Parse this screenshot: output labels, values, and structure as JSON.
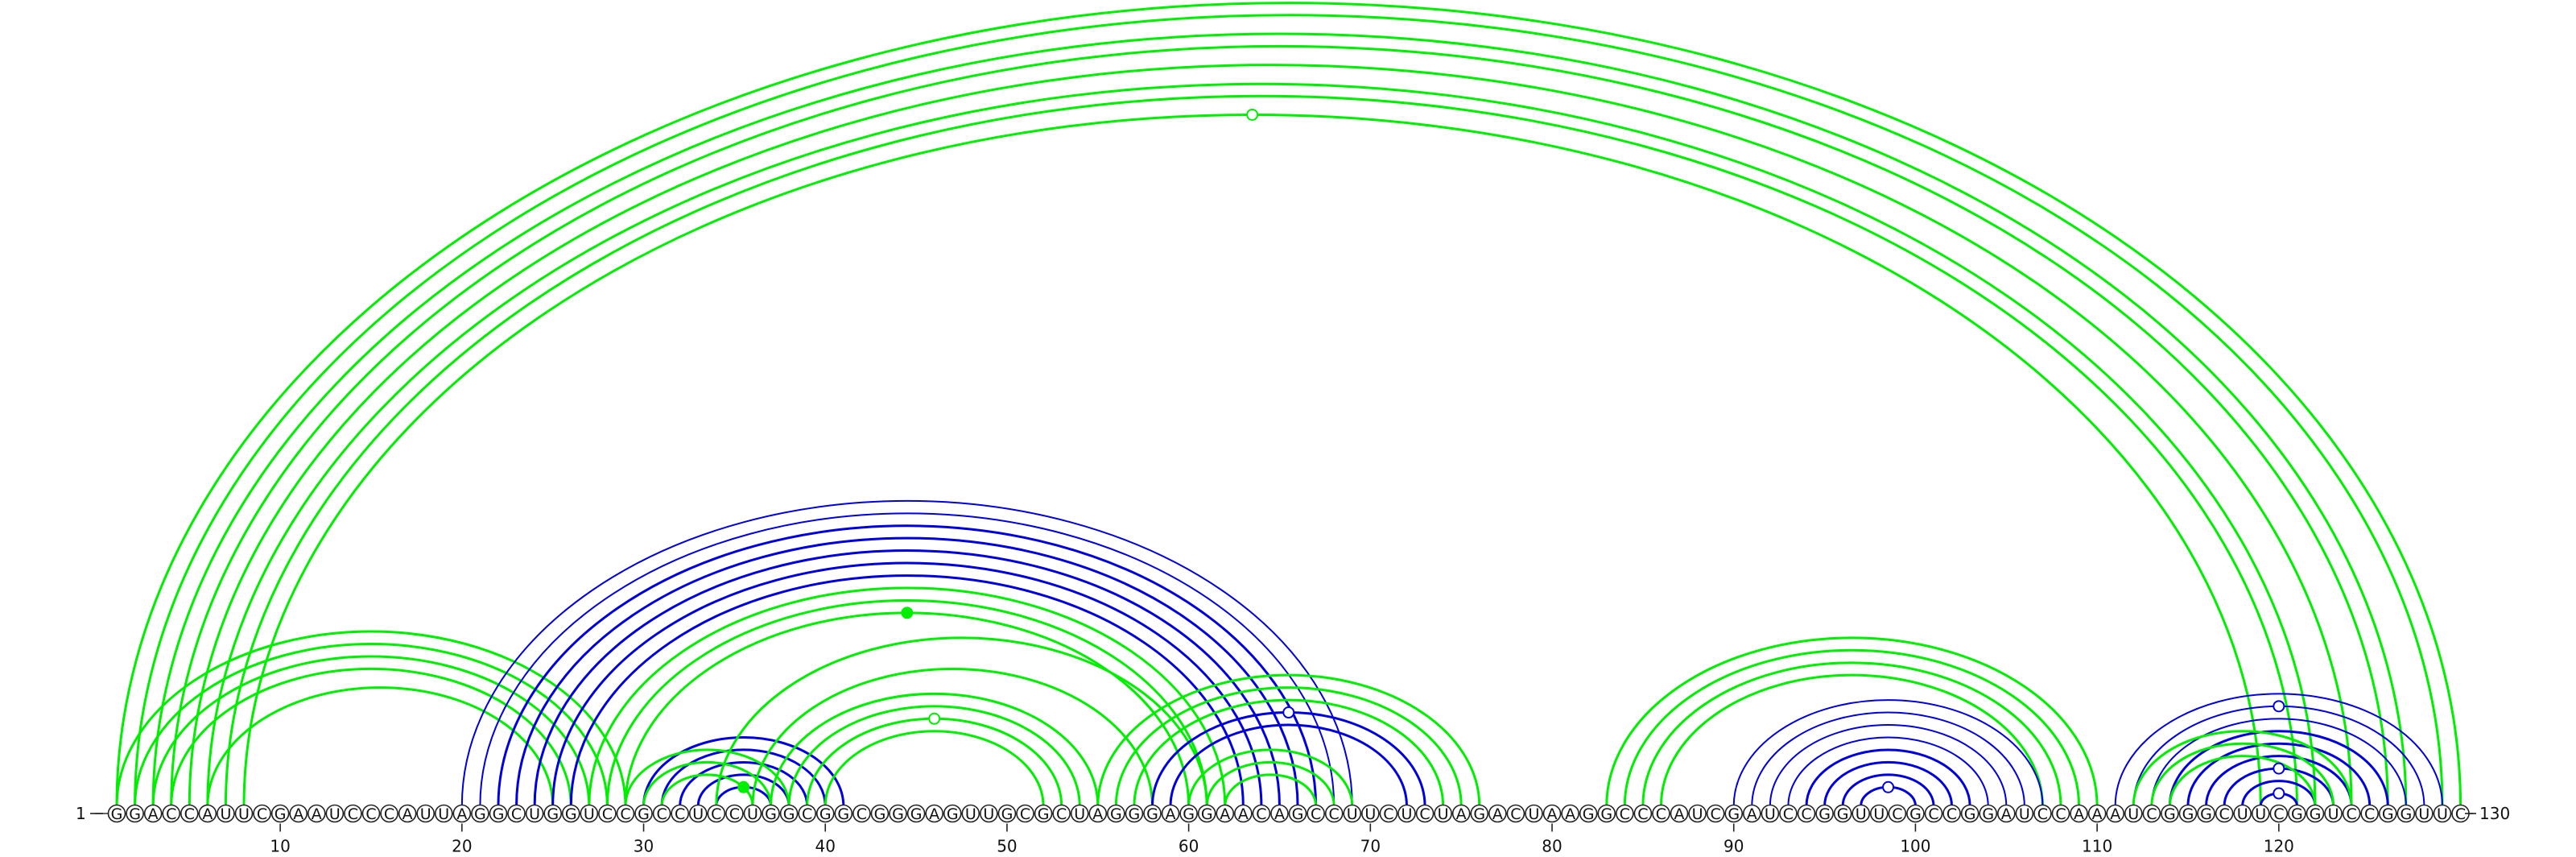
{
  "diagram": {
    "type": "rna-arc-diagram",
    "sequence": "GGACCAUUCGAAUCCCAUUAGGCUGGUCCGCCUCCUGGCGGCGGGAGUUGCGCUAGGGAGGAACAGCCUUCUCUAGACUAAGGCCCAUCGAUCCGGUUCGCCGGAUCCAAAUCGGGCUUCGGUCCGGUUC",
    "start_label": "1",
    "end_label": "130",
    "ticks": [
      "10",
      "20",
      "30",
      "40",
      "50",
      "60",
      "70",
      "80",
      "90",
      "100",
      "110",
      "120"
    ],
    "colors": {
      "green": "#00ee00",
      "blue": "#0000dd",
      "backbone": "#333333"
    },
    "arcs": [
      {
        "i": 1,
        "j": 130,
        "color": "green",
        "w": 3
      },
      {
        "i": 2,
        "j": 129,
        "color": "green",
        "w": 3
      },
      {
        "i": 3,
        "j": 127,
        "color": "green",
        "w": 3
      },
      {
        "i": 4,
        "j": 126,
        "color": "green",
        "w": 3
      },
      {
        "i": 5,
        "j": 124,
        "color": "green",
        "w": 3
      },
      {
        "i": 6,
        "j": 122,
        "color": "green",
        "w": 3
      },
      {
        "i": 7,
        "j": 121,
        "color": "green",
        "w": 3
      },
      {
        "i": 8,
        "j": 119,
        "color": "green",
        "w": 3
      },
      {
        "i": 1,
        "j": 29,
        "color": "green",
        "w": 3
      },
      {
        "i": 2,
        "j": 28,
        "color": "green",
        "w": 3
      },
      {
        "i": 3,
        "j": 27,
        "color": "green",
        "w": 3
      },
      {
        "i": 4,
        "j": 26,
        "color": "green",
        "w": 3
      },
      {
        "i": 6,
        "j": 25,
        "color": "green",
        "w": 3
      },
      {
        "i": 20,
        "j": 69,
        "color": "blue",
        "w": 2
      },
      {
        "i": 21,
        "j": 68,
        "color": "blue",
        "w": 2
      },
      {
        "i": 22,
        "j": 67,
        "color": "blue",
        "w": 3
      },
      {
        "i": 23,
        "j": 66,
        "color": "blue",
        "w": 3
      },
      {
        "i": 24,
        "j": 65,
        "color": "blue",
        "w": 3
      },
      {
        "i": 25,
        "j": 64,
        "color": "blue",
        "w": 3
      },
      {
        "i": 26,
        "j": 63,
        "color": "blue",
        "w": 3
      },
      {
        "i": 27,
        "j": 62,
        "color": "green",
        "w": 3
      },
      {
        "i": 28,
        "j": 61,
        "color": "green",
        "w": 3
      },
      {
        "i": 29,
        "j": 60,
        "color": "green",
        "w": 3
      },
      {
        "i": 30,
        "j": 41,
        "color": "blue",
        "w": 3
      },
      {
        "i": 31,
        "j": 40,
        "color": "blue",
        "w": 3
      },
      {
        "i": 32,
        "j": 39,
        "color": "blue",
        "w": 3
      },
      {
        "i": 33,
        "j": 38,
        "color": "blue",
        "w": 3
      },
      {
        "i": 34,
        "j": 37,
        "color": "blue",
        "w": 3
      },
      {
        "i": 29,
        "j": 38,
        "color": "green",
        "w": 3
      },
      {
        "i": 30,
        "j": 37,
        "color": "green",
        "w": 3
      },
      {
        "i": 31,
        "j": 36,
        "color": "green",
        "w": 3
      },
      {
        "i": 34,
        "j": 61,
        "color": "green",
        "w": 3
      },
      {
        "i": 36,
        "j": 58,
        "color": "green",
        "w": 3
      },
      {
        "i": 37,
        "j": 55,
        "color": "green",
        "w": 3
      },
      {
        "i": 38,
        "j": 54,
        "color": "green",
        "w": 3
      },
      {
        "i": 39,
        "j": 53,
        "color": "green",
        "w": 3
      },
      {
        "i": 40,
        "j": 52,
        "color": "green",
        "w": 3
      },
      {
        "i": 55,
        "j": 76,
        "color": "green",
        "w": 3
      },
      {
        "i": 56,
        "j": 75,
        "color": "green",
        "w": 3
      },
      {
        "i": 57,
        "j": 74,
        "color": "green",
        "w": 3
      },
      {
        "i": 58,
        "j": 73,
        "color": "blue",
        "w": 3
      },
      {
        "i": 59,
        "j": 72,
        "color": "blue",
        "w": 3
      },
      {
        "i": 60,
        "j": 69,
        "color": "green",
        "w": 3
      },
      {
        "i": 61,
        "j": 68,
        "color": "green",
        "w": 3
      },
      {
        "i": 62,
        "j": 67,
        "color": "green",
        "w": 3
      },
      {
        "i": 83,
        "j": 110,
        "color": "green",
        "w": 3
      },
      {
        "i": 84,
        "j": 109,
        "color": "green",
        "w": 3
      },
      {
        "i": 85,
        "j": 108,
        "color": "green",
        "w": 3
      },
      {
        "i": 86,
        "j": 107,
        "color": "green",
        "w": 3
      },
      {
        "i": 90,
        "j": 107,
        "color": "blue",
        "w": 2
      },
      {
        "i": 91,
        "j": 106,
        "color": "blue",
        "w": 2
      },
      {
        "i": 92,
        "j": 105,
        "color": "blue",
        "w": 2
      },
      {
        "i": 93,
        "j": 104,
        "color": "blue",
        "w": 2
      },
      {
        "i": 94,
        "j": 103,
        "color": "blue",
        "w": 3
      },
      {
        "i": 95,
        "j": 102,
        "color": "blue",
        "w": 3
      },
      {
        "i": 96,
        "j": 101,
        "color": "blue",
        "w": 3
      },
      {
        "i": 97,
        "j": 100,
        "color": "blue",
        "w": 3
      },
      {
        "i": 111,
        "j": 129,
        "color": "blue",
        "w": 2
      },
      {
        "i": 112,
        "j": 128,
        "color": "blue",
        "w": 2
      },
      {
        "i": 113,
        "j": 127,
        "color": "blue",
        "w": 2
      },
      {
        "i": 114,
        "j": 126,
        "color": "blue",
        "w": 3
      },
      {
        "i": 115,
        "j": 125,
        "color": "blue",
        "w": 3
      },
      {
        "i": 116,
        "j": 124,
        "color": "blue",
        "w": 3
      },
      {
        "i": 117,
        "j": 123,
        "color": "blue",
        "w": 3
      },
      {
        "i": 118,
        "j": 122,
        "color": "blue",
        "w": 3
      },
      {
        "i": 119,
        "j": 121,
        "color": "blue",
        "w": 3
      },
      {
        "i": 112,
        "j": 124,
        "color": "green",
        "w": 3
      },
      {
        "i": 113,
        "j": 123,
        "color": "green",
        "w": 3
      },
      {
        "i": 114,
        "j": 122,
        "color": "green",
        "w": 3
      }
    ],
    "markers": [
      {
        "i": 8,
        "j": 119,
        "color": "green",
        "filled": false
      },
      {
        "i": 29,
        "j": 60,
        "color": "green",
        "filled": true
      },
      {
        "i": 39,
        "j": 53,
        "color": "green",
        "filled": false
      },
      {
        "i": 58,
        "j": 73,
        "color": "blue",
        "filled": false
      },
      {
        "i": 97,
        "j": 100,
        "color": "blue",
        "filled": false
      },
      {
        "i": 112,
        "j": 128,
        "color": "blue",
        "filled": false
      },
      {
        "i": 117,
        "j": 123,
        "color": "blue",
        "filled": false
      },
      {
        "i": 119,
        "j": 121,
        "color": "blue",
        "filled": false
      },
      {
        "i": 34,
        "j": 37,
        "color": "green",
        "filled": true
      }
    ]
  }
}
